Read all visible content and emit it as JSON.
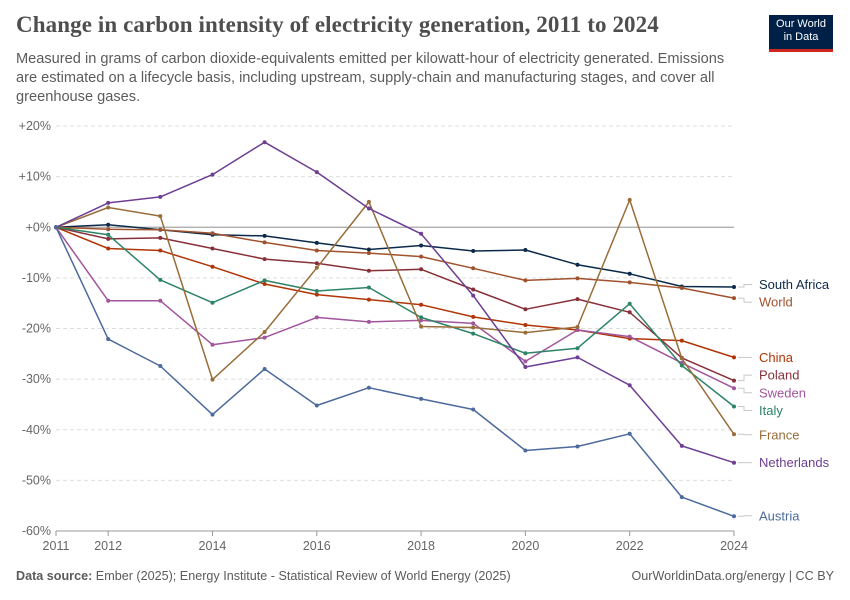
{
  "header": {
    "title": "Change in carbon intensity of electricity generation, 2011 to 2024",
    "subtitle": "Measured in grams of carbon dioxide-equivalents emitted per kilowatt-hour of electricity generated. Emissions are estimated on a lifecycle basis, including upstream, supply-chain and manufacturing stages, and cover all greenhouse gases."
  },
  "logo": {
    "line1": "Our World",
    "line2": "in Data"
  },
  "footer": {
    "source_label": "Data source:",
    "source_text": "Ember (2025); Energy Institute - Statistical Review of World Energy (2025)",
    "url_text": "OurWorldinData.org/energy | CC BY"
  },
  "chart_data": {
    "type": "line",
    "title": "Change in carbon intensity of electricity generation, 2011 to 2024",
    "xlabel": "",
    "ylabel": "",
    "xlim": [
      2011,
      2024
    ],
    "ylim": [
      -60,
      20
    ],
    "x_ticks": [
      {
        "value": 2011,
        "label": "2011"
      },
      {
        "value": 2012,
        "label": "2012"
      },
      {
        "value": 2014,
        "label": "2014"
      },
      {
        "value": 2016,
        "label": "2016"
      },
      {
        "value": 2018,
        "label": "2018"
      },
      {
        "value": 2020,
        "label": "2020"
      },
      {
        "value": 2022,
        "label": "2022"
      },
      {
        "value": 2024,
        "label": "2024"
      }
    ],
    "y_ticks": [
      {
        "value": 20,
        "label": "+20%"
      },
      {
        "value": 10,
        "label": "+10%"
      },
      {
        "value": 0,
        "label": "+0%"
      },
      {
        "value": -10,
        "label": "-10%"
      },
      {
        "value": -20,
        "label": "-20%"
      },
      {
        "value": -30,
        "label": "-30%"
      },
      {
        "value": -40,
        "label": "-40%"
      },
      {
        "value": -50,
        "label": "-50%"
      },
      {
        "value": -60,
        "label": "-60%"
      }
    ],
    "grid": "horizontal-dashed",
    "legend": "right-end-labels",
    "x": [
      2011,
      2012,
      2013,
      2014,
      2015,
      2016,
      2017,
      2018,
      2019,
      2020,
      2021,
      2022,
      2023,
      2024
    ],
    "series": [
      {
        "name": "South Africa",
        "color": "#0b2a4a",
        "label_y": -11.3,
        "values": [
          0,
          0.5,
          -0.5,
          -1.5,
          -1.7,
          -3.1,
          -4.4,
          -3.6,
          -4.7,
          -4.5,
          -7.4,
          -9.2,
          -11.7,
          -11.8
        ]
      },
      {
        "name": "World",
        "color": "#a0522d",
        "label_y": -14.8,
        "values": [
          0,
          -0.4,
          -0.5,
          -1.2,
          -3.0,
          -4.6,
          -5.1,
          -5.8,
          -8.1,
          -10.5,
          -10.1,
          -10.9,
          -12.0,
          -14.0
        ]
      },
      {
        "name": "China",
        "color": "#b13507",
        "label_y": -25.7,
        "values": [
          0,
          -4.2,
          -4.6,
          -7.8,
          -11.2,
          -13.3,
          -14.3,
          -15.3,
          -17.7,
          -19.3,
          -20.3,
          -22.0,
          -22.4,
          -25.7
        ]
      },
      {
        "name": "Poland",
        "color": "#883039",
        "label_y": -29.2,
        "values": [
          0,
          -2.3,
          -2.1,
          -4.2,
          -6.3,
          -7.1,
          -8.6,
          -8.3,
          -12.3,
          -16.2,
          -14.2,
          -16.8,
          -25.8,
          -30.3
        ]
      },
      {
        "name": "Sweden",
        "color": "#a2559c",
        "label_y": -32.7,
        "values": [
          0,
          -14.5,
          -14.5,
          -23.2,
          -21.8,
          -17.8,
          -18.7,
          -18.4,
          -19.0,
          -26.5,
          -20.3,
          -21.6,
          -26.8,
          -31.8
        ]
      },
      {
        "name": "Italy",
        "color": "#2c8465",
        "label_y": -36.2,
        "values": [
          0,
          -1.5,
          -10.4,
          -14.9,
          -10.5,
          -12.6,
          -11.9,
          -17.8,
          -21.0,
          -24.9,
          -23.9,
          -15.1,
          -27.3,
          -35.4
        ]
      },
      {
        "name": "France",
        "color": "#996d39",
        "label_y": -41.0,
        "values": [
          0,
          3.9,
          2.2,
          -30.1,
          -20.7,
          -8.0,
          5.0,
          -19.6,
          -19.8,
          -20.8,
          -19.7,
          5.4,
          -25.9,
          -40.9
        ]
      },
      {
        "name": "Netherlands",
        "color": "#6d3e91",
        "label_y": -46.5,
        "values": [
          0,
          4.8,
          6.0,
          10.4,
          16.8,
          10.9,
          3.7,
          -1.3,
          -13.5,
          -27.6,
          -25.7,
          -31.2,
          -43.2,
          -46.5
        ]
      },
      {
        "name": "Austria",
        "color": "#4c6a9c",
        "label_y": -57.0,
        "values": [
          0,
          -22.1,
          -27.4,
          -37.0,
          -28.0,
          -35.2,
          -31.7,
          -33.9,
          -36.0,
          -44.1,
          -43.3,
          -40.8,
          -53.3,
          -57.1
        ]
      }
    ]
  }
}
